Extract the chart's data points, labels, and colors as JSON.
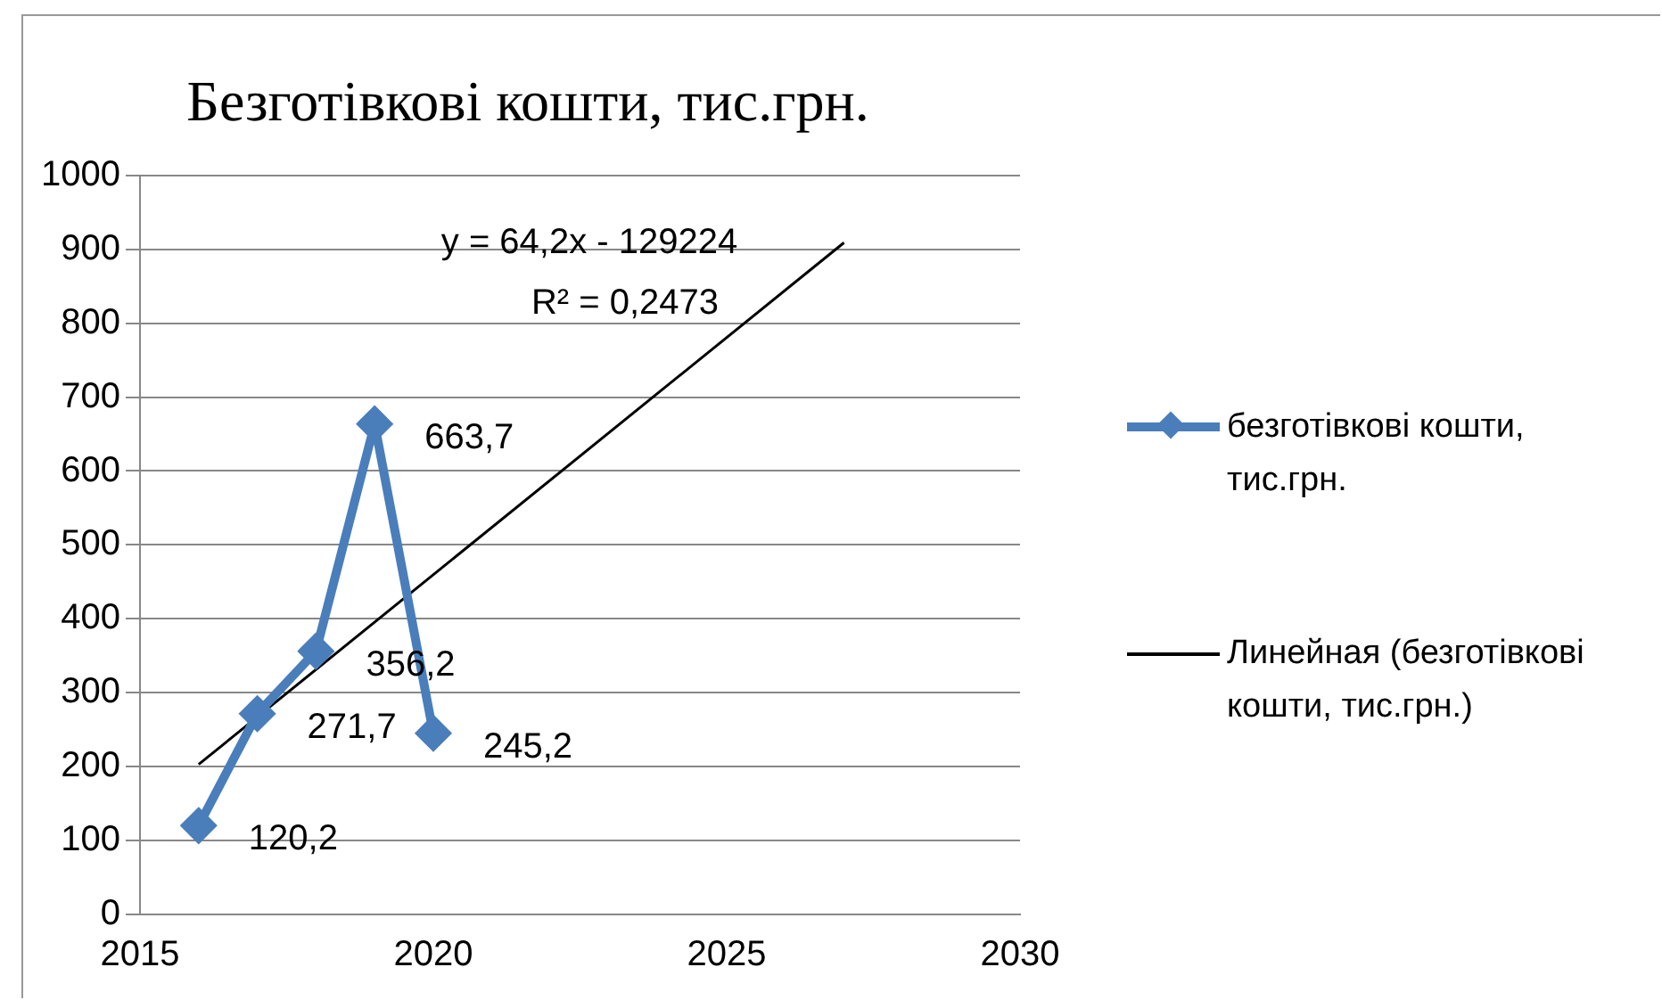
{
  "chart_data": {
    "type": "line",
    "title": "Безготівкові кошти, тис.грн.",
    "x": [
      2016,
      2017,
      2018,
      2019,
      2020
    ],
    "series": [
      {
        "name": "безготівкові кошти, тис.грн.",
        "color": "#4a7ebb",
        "values": [
          120.2,
          271.7,
          356.2,
          663.7,
          245.2
        ],
        "value_labels": [
          "120,2",
          "271,7",
          "356,2",
          "663,7",
          "245,2"
        ],
        "marker": "diamond"
      },
      {
        "name": "Линейная (безготівкові кошти, тис.грн.)",
        "color": "#000000",
        "type": "line",
        "x": [
          2016,
          2027
        ],
        "values": [
          203,
          909
        ],
        "marker": "none"
      }
    ],
    "xlim": [
      2015,
      2030
    ],
    "xticks": [
      2015,
      2020,
      2025,
      2030
    ],
    "ylim": [
      0,
      1000
    ],
    "yticks": [
      0,
      100,
      200,
      300,
      400,
      500,
      600,
      700,
      800,
      900,
      1000
    ],
    "grid": "y",
    "legend": "right",
    "annotations": [
      "y = 64,2x - 129224",
      "R² = 0,2473"
    ]
  }
}
